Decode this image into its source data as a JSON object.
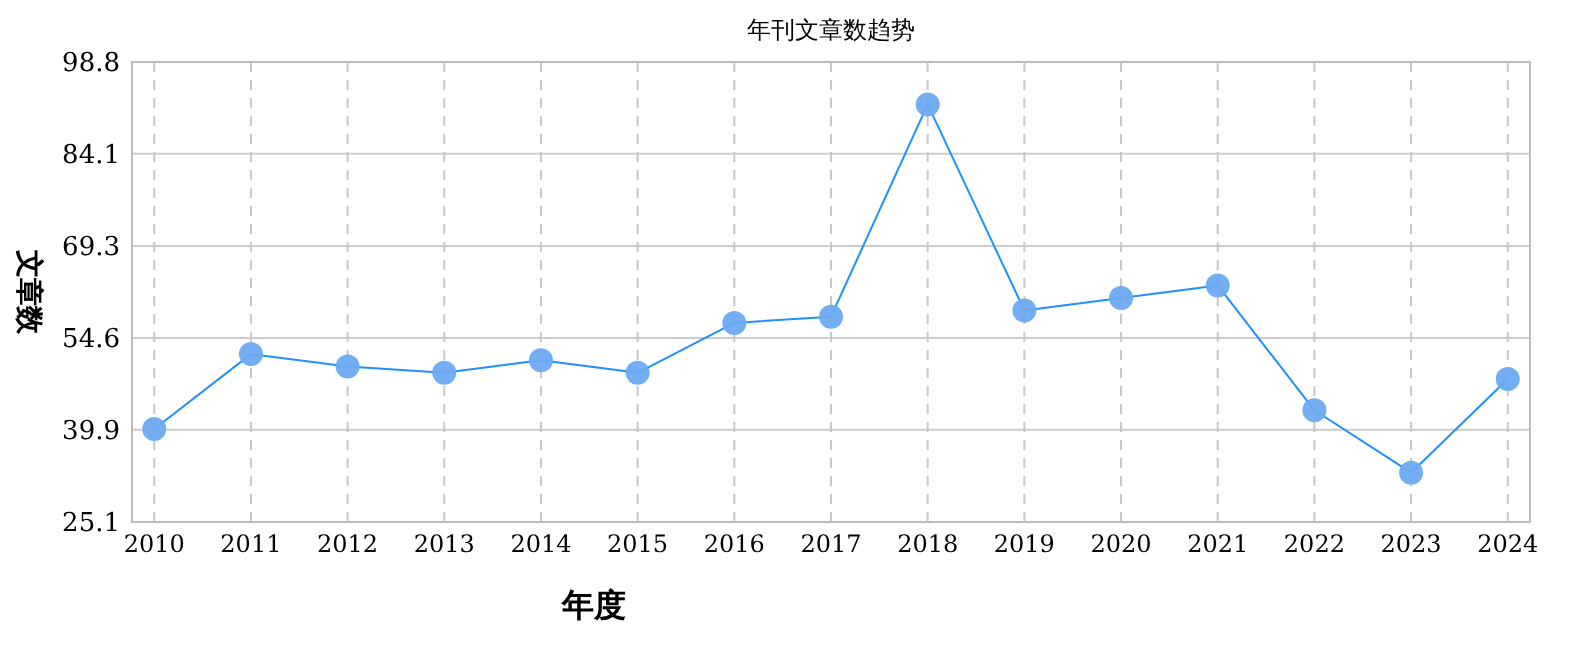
{
  "chart_data": {
    "type": "line",
    "title": "年刊文章数趋势",
    "xlabel": "年度",
    "ylabel": "文章数",
    "categories": [
      "2010",
      "2011",
      "2012",
      "2013",
      "2014",
      "2015",
      "2016",
      "2017",
      "2018",
      "2019",
      "2020",
      "2021",
      "2022",
      "2023",
      "2024"
    ],
    "series": [
      {
        "color": "#1e90ff",
        "values": [
          40,
          52,
          50,
          49,
          51,
          49,
          57,
          58,
          92,
          59,
          61,
          63,
          43,
          33,
          48
        ]
      }
    ],
    "ylim": [
      25.1,
      98.8
    ],
    "yticks": [
      25.1,
      39.9,
      54.6,
      69.3,
      84.1,
      98.8
    ],
    "grid": true,
    "marker": "circle",
    "line_style": "solid"
  }
}
